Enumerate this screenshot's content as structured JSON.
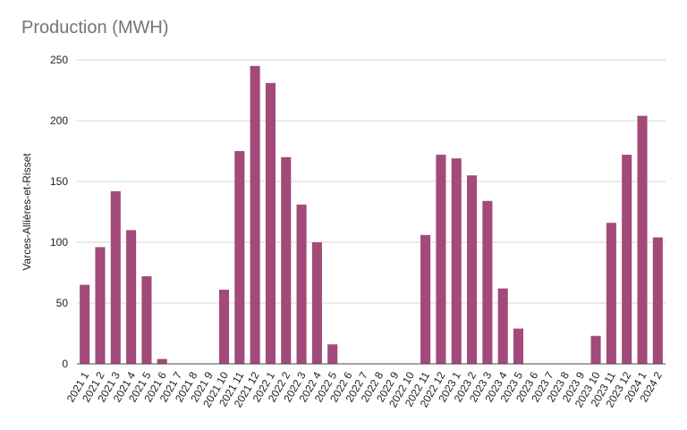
{
  "chart_data": {
    "type": "bar",
    "title": "Production (MWH)",
    "ylabel": "Varces-Allières-et-Risset",
    "xlabel": "",
    "ylim": [
      0,
      250
    ],
    "yticks": [
      0,
      50,
      100,
      150,
      200,
      250
    ],
    "grid": true,
    "bar_color": "#a34a7a",
    "categories": [
      "2021 1",
      "2021 2",
      "2021 3",
      "2021 4",
      "2021 5",
      "2021 6",
      "2021 7",
      "2021 8",
      "2021 9",
      "2021 10",
      "2021 11",
      "2021 12",
      "2022 1",
      "2022 2",
      "2022 3",
      "2022 4",
      "2022 5",
      "2022 6",
      "2022 7",
      "2022 8",
      "2022 9",
      "2022 10",
      "2022 11",
      "2022 12",
      "2023 1",
      "2023 2",
      "2023 3",
      "2023 4",
      "2023 5",
      "2023 6",
      "2023 7",
      "2023 8",
      "2023 9",
      "2023 10",
      "2023 11",
      "2023 12",
      "2024 1",
      "2024 2"
    ],
    "values": [
      65,
      96,
      142,
      110,
      72,
      4,
      0,
      0,
      0,
      61,
      175,
      245,
      231,
      170,
      131,
      100,
      16,
      0,
      0,
      0,
      0,
      0,
      106,
      172,
      169,
      155,
      134,
      62,
      29,
      0,
      0,
      0,
      0,
      23,
      116,
      172,
      204,
      104
    ]
  }
}
